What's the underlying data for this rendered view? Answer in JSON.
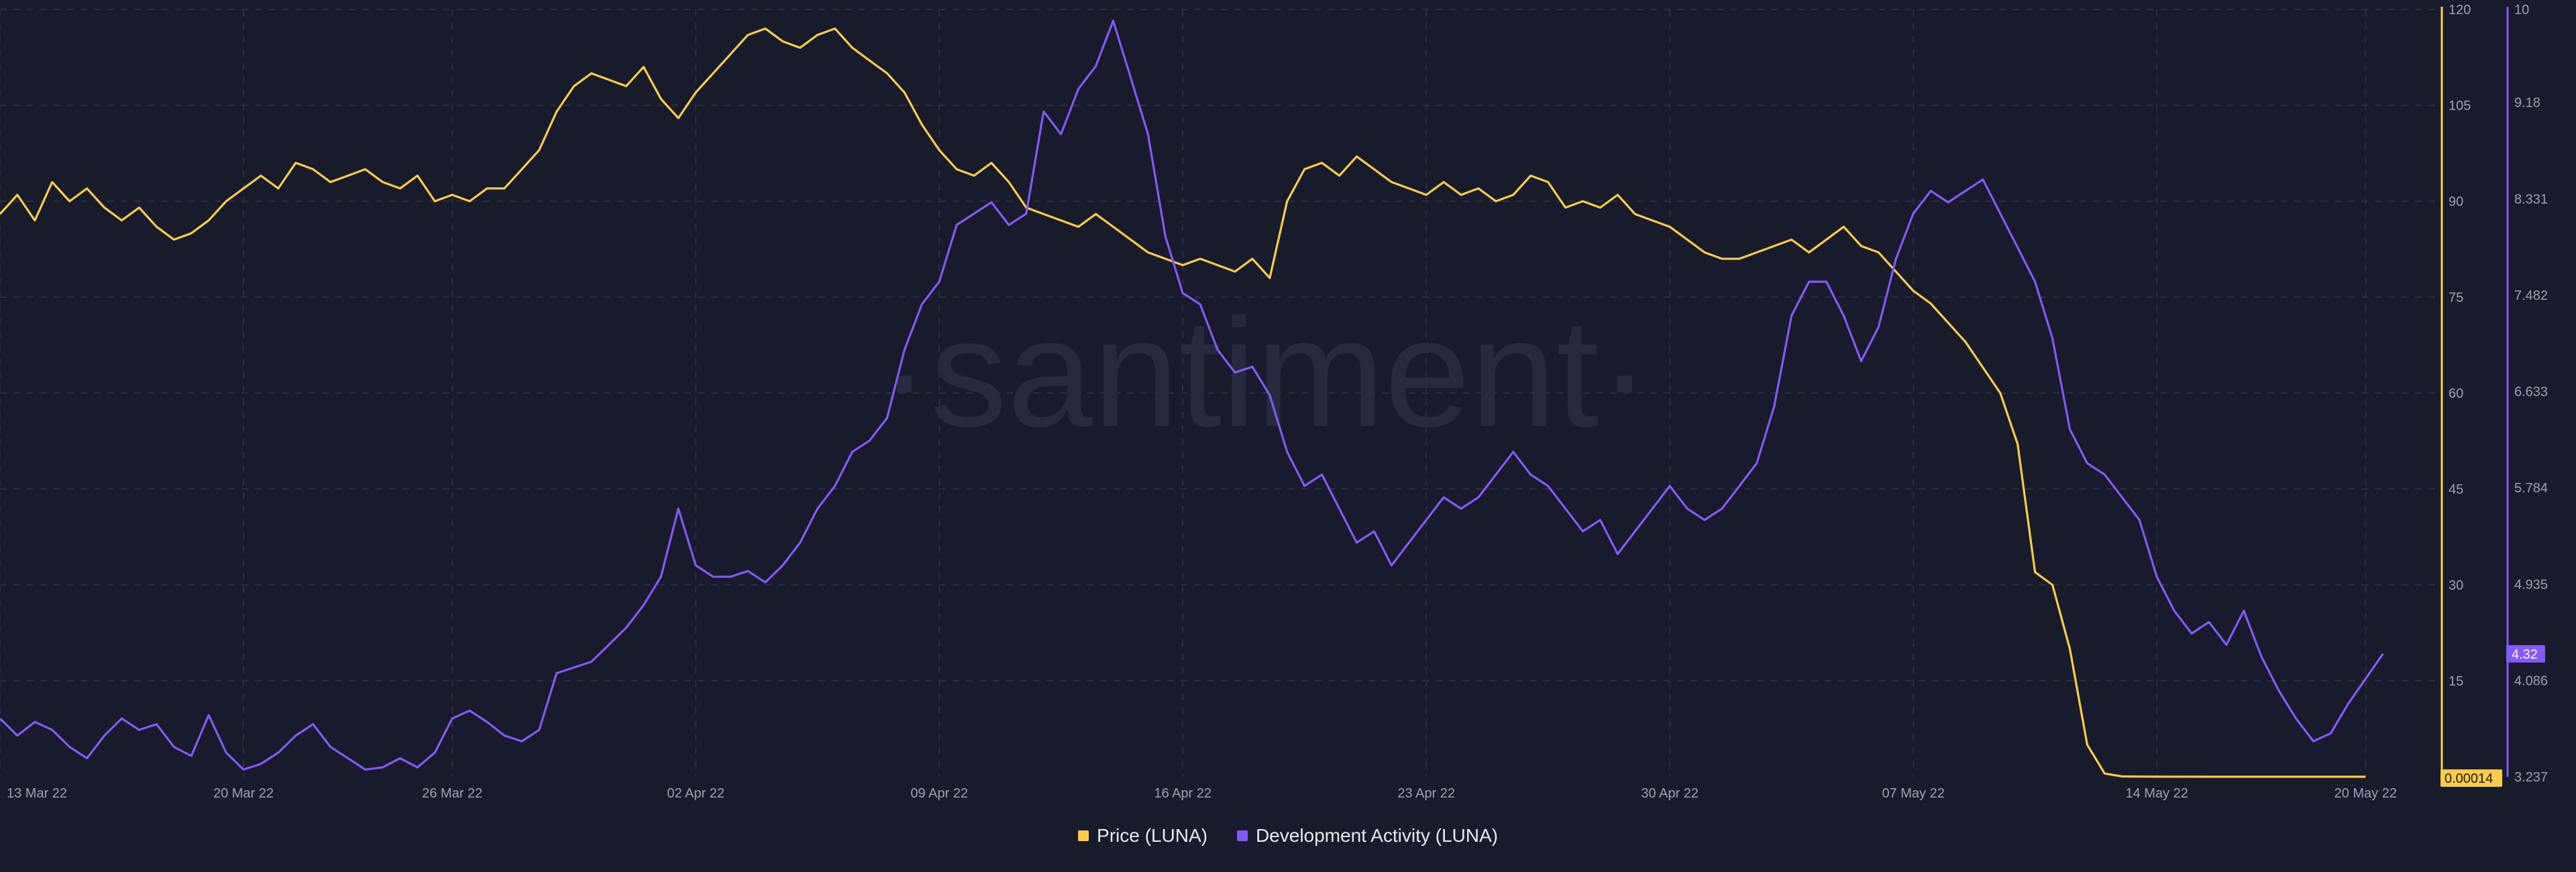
{
  "watermark": "·santiment·",
  "colors": {
    "background": "#181b2b",
    "grid": "#2a2e42",
    "price": "#ffcb47",
    "dev": "#8358ff",
    "tick_text": "#9aa1b9"
  },
  "chart_data": {
    "type": "line",
    "x_ticks": [
      "13 Mar 22",
      "20 Mar 22",
      "26 Mar 22",
      "02 Apr 22",
      "09 Apr 22",
      "16 Apr 22",
      "23 Apr 22",
      "30 Apr 22",
      "07 May 22",
      "14 May 22",
      "20 May 22"
    ],
    "x_tick_days": [
      0,
      7,
      13,
      20,
      27,
      34,
      41,
      48,
      55,
      62,
      68
    ],
    "y_left": {
      "label": "Price (LUNA)",
      "ticks": [
        "120",
        "105",
        "90",
        "75",
        "60",
        "45",
        "30",
        "15"
      ],
      "range": [
        0,
        120
      ]
    },
    "y_right": {
      "label": "Development Activity (LUNA)",
      "ticks": [
        "10",
        "9.18",
        "8.331",
        "7.482",
        "6.633",
        "5.784",
        "4.935",
        "4.086",
        "3.237"
      ],
      "range": [
        3.237,
        10
      ]
    },
    "current_price": "0.00014",
    "current_dev": "4.32",
    "legend": [
      "Price (LUNA)",
      "Development Activity (LUNA)"
    ],
    "series": [
      {
        "name": "Price (LUNA)",
        "axis": "left",
        "color": "#ffcb47",
        "points": [
          [
            0,
            88
          ],
          [
            0.5,
            91
          ],
          [
            1,
            87
          ],
          [
            1.5,
            93
          ],
          [
            2,
            90
          ],
          [
            2.5,
            92
          ],
          [
            3,
            89
          ],
          [
            3.5,
            87
          ],
          [
            4,
            89
          ],
          [
            4.5,
            86
          ],
          [
            5,
            84
          ],
          [
            5.5,
            85
          ],
          [
            6,
            87
          ],
          [
            6.5,
            90
          ],
          [
            7,
            92
          ],
          [
            7.5,
            94
          ],
          [
            8,
            92
          ],
          [
            8.5,
            96
          ],
          [
            9,
            95
          ],
          [
            9.5,
            93
          ],
          [
            10,
            94
          ],
          [
            10.5,
            95
          ],
          [
            11,
            93
          ],
          [
            11.5,
            92
          ],
          [
            12,
            94
          ],
          [
            12.5,
            90
          ],
          [
            13,
            91
          ],
          [
            13.5,
            90
          ],
          [
            14,
            92
          ],
          [
            14.5,
            92
          ],
          [
            15,
            95
          ],
          [
            15.5,
            98
          ],
          [
            16,
            104
          ],
          [
            16.5,
            108
          ],
          [
            17,
            110
          ],
          [
            17.5,
            109
          ],
          [
            18,
            108
          ],
          [
            18.5,
            111
          ],
          [
            19,
            106
          ],
          [
            19.5,
            103
          ],
          [
            20,
            107
          ],
          [
            20.5,
            110
          ],
          [
            21,
            113
          ],
          [
            21.5,
            116
          ],
          [
            22,
            117
          ],
          [
            22.5,
            115
          ],
          [
            23,
            114
          ],
          [
            23.5,
            116
          ],
          [
            24,
            117
          ],
          [
            24.5,
            114
          ],
          [
            25,
            112
          ],
          [
            25.5,
            110
          ],
          [
            26,
            107
          ],
          [
            26.5,
            102
          ],
          [
            27,
            98
          ],
          [
            27.5,
            95
          ],
          [
            28,
            94
          ],
          [
            28.5,
            96
          ],
          [
            29,
            93
          ],
          [
            29.5,
            89
          ],
          [
            30,
            88
          ],
          [
            30.5,
            87
          ],
          [
            31,
            86
          ],
          [
            31.5,
            88
          ],
          [
            32,
            86
          ],
          [
            32.5,
            84
          ],
          [
            33,
            82
          ],
          [
            33.5,
            81
          ],
          [
            34,
            80
          ],
          [
            34.5,
            81
          ],
          [
            35,
            80
          ],
          [
            35.5,
            79
          ],
          [
            36,
            81
          ],
          [
            36.5,
            78
          ],
          [
            37,
            90
          ],
          [
            37.5,
            95
          ],
          [
            38,
            96
          ],
          [
            38.5,
            94
          ],
          [
            39,
            97
          ],
          [
            39.5,
            95
          ],
          [
            40,
            93
          ],
          [
            40.5,
            92
          ],
          [
            41,
            91
          ],
          [
            41.5,
            93
          ],
          [
            42,
            91
          ],
          [
            42.5,
            92
          ],
          [
            43,
            90
          ],
          [
            43.5,
            91
          ],
          [
            44,
            94
          ],
          [
            44.5,
            93
          ],
          [
            45,
            89
          ],
          [
            45.5,
            90
          ],
          [
            46,
            89
          ],
          [
            46.5,
            91
          ],
          [
            47,
            88
          ],
          [
            47.5,
            87
          ],
          [
            48,
            86
          ],
          [
            48.5,
            84
          ],
          [
            49,
            82
          ],
          [
            49.5,
            81
          ],
          [
            50,
            81
          ],
          [
            50.5,
            82
          ],
          [
            51,
            83
          ],
          [
            51.5,
            84
          ],
          [
            52,
            82
          ],
          [
            52.5,
            84
          ],
          [
            53,
            86
          ],
          [
            53.5,
            83
          ],
          [
            54,
            82
          ],
          [
            54.5,
            79
          ],
          [
            55,
            76
          ],
          [
            55.5,
            74
          ],
          [
            56,
            71
          ],
          [
            56.5,
            68
          ],
          [
            57,
            64
          ],
          [
            57.5,
            60
          ],
          [
            58,
            52
          ],
          [
            58.5,
            32
          ],
          [
            59,
            30
          ],
          [
            59.5,
            20
          ],
          [
            60,
            5
          ],
          [
            60.5,
            0.5
          ],
          [
            61,
            0.05
          ],
          [
            62,
            0.01
          ],
          [
            64,
            0.0005
          ],
          [
            66,
            0.0003
          ],
          [
            68,
            0.00014
          ]
        ]
      },
      {
        "name": "Development Activity (LUNA)",
        "axis": "right",
        "color": "#8358ff",
        "points": [
          [
            0,
            3.75
          ],
          [
            0.5,
            3.6
          ],
          [
            1,
            3.72
          ],
          [
            1.5,
            3.65
          ],
          [
            2,
            3.5
          ],
          [
            2.5,
            3.4
          ],
          [
            3,
            3.6
          ],
          [
            3.5,
            3.75
          ],
          [
            4,
            3.65
          ],
          [
            4.5,
            3.7
          ],
          [
            5,
            3.5
          ],
          [
            5.5,
            3.42
          ],
          [
            6,
            3.78
          ],
          [
            6.5,
            3.45
          ],
          [
            7,
            3.3
          ],
          [
            7.5,
            3.35
          ],
          [
            8,
            3.45
          ],
          [
            8.5,
            3.6
          ],
          [
            9,
            3.7
          ],
          [
            9.5,
            3.5
          ],
          [
            10,
            3.4
          ],
          [
            10.5,
            3.3
          ],
          [
            11,
            3.32
          ],
          [
            11.5,
            3.4
          ],
          [
            12,
            3.32
          ],
          [
            12.5,
            3.45
          ],
          [
            13,
            3.75
          ],
          [
            13.5,
            3.82
          ],
          [
            14,
            3.72
          ],
          [
            14.5,
            3.6
          ],
          [
            15,
            3.55
          ],
          [
            15.5,
            3.65
          ],
          [
            16,
            4.15
          ],
          [
            16.5,
            4.2
          ],
          [
            17,
            4.25
          ],
          [
            17.5,
            4.4
          ],
          [
            18,
            4.55
          ],
          [
            18.5,
            4.75
          ],
          [
            19,
            5.0
          ],
          [
            19.5,
            5.6
          ],
          [
            20,
            5.1
          ],
          [
            20.5,
            5.0
          ],
          [
            21,
            5.0
          ],
          [
            21.5,
            5.05
          ],
          [
            22,
            4.95
          ],
          [
            22.5,
            5.1
          ],
          [
            23,
            5.3
          ],
          [
            23.5,
            5.6
          ],
          [
            24,
            5.8
          ],
          [
            24.5,
            6.1
          ],
          [
            25,
            6.2
          ],
          [
            25.5,
            6.4
          ],
          [
            26,
            7.0
          ],
          [
            26.5,
            7.4
          ],
          [
            27,
            7.6
          ],
          [
            27.5,
            8.1
          ],
          [
            28,
            8.2
          ],
          [
            28.5,
            8.3
          ],
          [
            29,
            8.1
          ],
          [
            29.5,
            8.2
          ],
          [
            30,
            9.1
          ],
          [
            30.5,
            8.9
          ],
          [
            31,
            9.3
          ],
          [
            31.5,
            9.5
          ],
          [
            32,
            9.9
          ],
          [
            32.5,
            9.4
          ],
          [
            33,
            8.9
          ],
          [
            33.5,
            8.0
          ],
          [
            34,
            7.5
          ],
          [
            34.5,
            7.4
          ],
          [
            35,
            7.0
          ],
          [
            35.5,
            6.8
          ],
          [
            36,
            6.85
          ],
          [
            36.5,
            6.6
          ],
          [
            37,
            6.1
          ],
          [
            37.5,
            5.8
          ],
          [
            38,
            5.9
          ],
          [
            38.5,
            5.6
          ],
          [
            39,
            5.3
          ],
          [
            39.5,
            5.4
          ],
          [
            40,
            5.1
          ],
          [
            40.5,
            5.3
          ],
          [
            41,
            5.5
          ],
          [
            41.5,
            5.7
          ],
          [
            42,
            5.6
          ],
          [
            42.5,
            5.7
          ],
          [
            43,
            5.9
          ],
          [
            43.5,
            6.1
          ],
          [
            44,
            5.9
          ],
          [
            44.5,
            5.8
          ],
          [
            45,
            5.6
          ],
          [
            45.5,
            5.4
          ],
          [
            46,
            5.5
          ],
          [
            46.5,
            5.2
          ],
          [
            47,
            5.4
          ],
          [
            47.5,
            5.6
          ],
          [
            48,
            5.8
          ],
          [
            48.5,
            5.6
          ],
          [
            49,
            5.5
          ],
          [
            49.5,
            5.6
          ],
          [
            50,
            5.8
          ],
          [
            50.5,
            6.0
          ],
          [
            51,
            6.5
          ],
          [
            51.5,
            7.3
          ],
          [
            52,
            7.6
          ],
          [
            52.5,
            7.6
          ],
          [
            53,
            7.3
          ],
          [
            53.5,
            6.9
          ],
          [
            54,
            7.2
          ],
          [
            54.5,
            7.8
          ],
          [
            55,
            8.2
          ],
          [
            55.5,
            8.4
          ],
          [
            56,
            8.3
          ],
          [
            56.5,
            8.4
          ],
          [
            57,
            8.5
          ],
          [
            57.5,
            8.2
          ],
          [
            58,
            7.9
          ],
          [
            58.5,
            7.6
          ],
          [
            59,
            7.1
          ],
          [
            59.5,
            6.3
          ],
          [
            60,
            6.0
          ],
          [
            60.5,
            5.9
          ],
          [
            61,
            5.7
          ],
          [
            61.5,
            5.5
          ],
          [
            62,
            5.0
          ],
          [
            62.5,
            4.7
          ],
          [
            63,
            4.5
          ],
          [
            63.5,
            4.6
          ],
          [
            64,
            4.4
          ],
          [
            64.5,
            4.7
          ],
          [
            65,
            4.3
          ],
          [
            65.5,
            4.0
          ],
          [
            66,
            3.75
          ],
          [
            66.5,
            3.55
          ],
          [
            67,
            3.62
          ],
          [
            67.5,
            3.88
          ],
          [
            68,
            4.1
          ],
          [
            68.5,
            4.32
          ]
        ]
      }
    ]
  }
}
